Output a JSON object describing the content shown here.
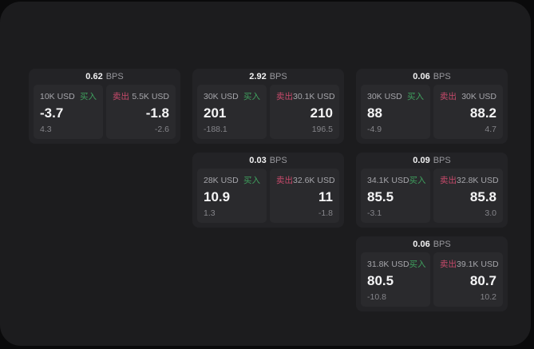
{
  "app": {
    "name": "fx-quote-board"
  },
  "colors": {
    "page_background": "#0a0a0b",
    "window_background": "#1c1c1e",
    "card_background": "#232326",
    "panel_background": "#2a2a2d",
    "primary_text": "#f5f5f6",
    "muted_text": "#a6a6ab",
    "faint_text": "#85858a",
    "buy_green": "#3fa05e",
    "sell_red": "#c74a6b"
  },
  "cards": [
    {
      "col": 1,
      "row": 1,
      "bps_value": "0.62",
      "bps_unit": "BPS",
      "buy": {
        "amount": "10K USD",
        "label": "买入",
        "price": "-3.7",
        "delta": "4.3"
      },
      "sell": {
        "label": "卖出",
        "amount": "5.5K USD",
        "price": "-1.8",
        "delta": "-2.6"
      }
    },
    {
      "col": 2,
      "row": 1,
      "bps_value": "2.92",
      "bps_unit": "BPS",
      "buy": {
        "amount": "30K USD",
        "label": "买入",
        "price": "201",
        "delta": "-188.1"
      },
      "sell": {
        "label": "卖出",
        "amount": "30.1K USD",
        "price": "210",
        "delta": "196.5"
      }
    },
    {
      "col": 3,
      "row": 1,
      "bps_value": "0.06",
      "bps_unit": "BPS",
      "buy": {
        "amount": "30K USD",
        "label": "买入",
        "price": "88",
        "delta": "-4.9"
      },
      "sell": {
        "label": "卖出",
        "amount": "30K USD",
        "price": "88.2",
        "delta": "4.7"
      }
    },
    {
      "col": 2,
      "row": 2,
      "bps_value": "0.03",
      "bps_unit": "BPS",
      "buy": {
        "amount": "28K USD",
        "label": "买入",
        "price": "10.9",
        "delta": "1.3"
      },
      "sell": {
        "label": "卖出",
        "amount": "32.6K USD",
        "price": "11",
        "delta": "-1.8"
      }
    },
    {
      "col": 3,
      "row": 2,
      "bps_value": "0.09",
      "bps_unit": "BPS",
      "buy": {
        "amount": "34.1K USD",
        "label": "买入",
        "price": "85.5",
        "delta": "-3.1"
      },
      "sell": {
        "label": "卖出",
        "amount": "32.8K USD",
        "price": "85.8",
        "delta": "3.0"
      }
    },
    {
      "col": 3,
      "row": 3,
      "bps_value": "0.06",
      "bps_unit": "BPS",
      "buy": {
        "amount": "31.8K USD",
        "label": "买入",
        "price": "80.5",
        "delta": "-10.8"
      },
      "sell": {
        "label": "卖出",
        "amount": "39.1K USD",
        "price": "80.7",
        "delta": "10.2"
      }
    }
  ]
}
